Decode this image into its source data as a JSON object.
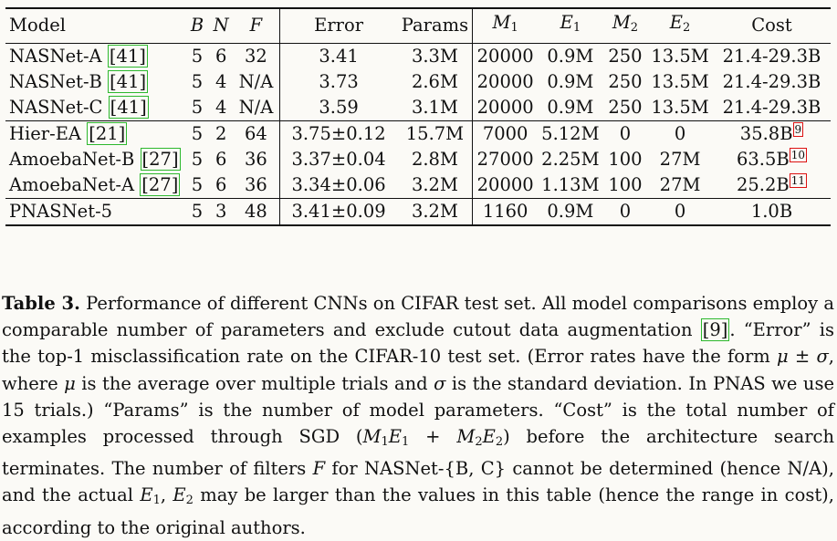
{
  "header": {
    "model": "Model",
    "b": "B",
    "n": "N",
    "f": "F",
    "error": "Error",
    "params": "Params",
    "m1": "M",
    "m1_sub": "1",
    "e1": "E",
    "e1_sub": "1",
    "m2": "M",
    "m2_sub": "2",
    "e2": "E",
    "e2_sub": "2",
    "cost": "Cost"
  },
  "rows": [
    {
      "model": "NASNet-A",
      "cite": "[41]",
      "b": "5",
      "n": "6",
      "f": "32",
      "error": "3.41",
      "params": "3.3M",
      "m1": "20000",
      "e1": "0.9M",
      "m2": "250",
      "e2": "13.5M",
      "cost": "21.4-29.3B",
      "fn": ""
    },
    {
      "model": "NASNet-B",
      "cite": "[41]",
      "b": "5",
      "n": "4",
      "f": "N/A",
      "error": "3.73",
      "params": "2.6M",
      "m1": "20000",
      "e1": "0.9M",
      "m2": "250",
      "e2": "13.5M",
      "cost": "21.4-29.3B",
      "fn": ""
    },
    {
      "model": "NASNet-C",
      "cite": "[41]",
      "b": "5",
      "n": "4",
      "f": "N/A",
      "error": "3.59",
      "params": "3.1M",
      "m1": "20000",
      "e1": "0.9M",
      "m2": "250",
      "e2": "13.5M",
      "cost": "21.4-29.3B",
      "fn": ""
    },
    {
      "model": "Hier-EA",
      "cite": "[21]",
      "b": "5",
      "n": "2",
      "f": "64",
      "error": "3.75±0.12",
      "params": "15.7M",
      "m1": "7000",
      "e1": "5.12M",
      "m2": "0",
      "e2": "0",
      "cost": "35.8B",
      "fn": "9"
    },
    {
      "model": "AmoebaNet-B",
      "cite": "[27]",
      "b": "5",
      "n": "6",
      "f": "36",
      "error": "3.37±0.04",
      "params": "2.8M",
      "m1": "27000",
      "e1": "2.25M",
      "m2": "100",
      "e2": "27M",
      "cost": "63.5B",
      "fn": "10"
    },
    {
      "model": "AmoebaNet-A",
      "cite": "[27]",
      "b": "5",
      "n": "6",
      "f": "36",
      "error": "3.34±0.06",
      "params": "3.2M",
      "m1": "20000",
      "e1": "1.13M",
      "m2": "100",
      "e2": "27M",
      "cost": "25.2B",
      "fn": "11"
    },
    {
      "model": "PNASNet-5",
      "cite": "",
      "b": "5",
      "n": "3",
      "f": "48",
      "error": "3.41±0.09",
      "params": "3.2M",
      "m1": "1160",
      "e1": "0.9M",
      "m2": "0",
      "e2": "0",
      "cost": "1.0B",
      "fn": ""
    }
  ],
  "caption": {
    "label": "Table 3.",
    "s1": " Performance of different CNNs on CIFAR test set. All model comparisons employ a comparable number of parameters and exclude cutout data augmentation ",
    "cite9": "[9]",
    "s2": ". “Error” is the top-1 misclassification rate on the CIFAR-10 test set. (Error rates have the form ",
    "mu": "μ",
    "pm": " ± ",
    "sigma": "σ",
    "s3": ", where ",
    "s4": " is the average over multiple trials and ",
    "s5": " is the standard deviation. In PNAS we use 15 trials.) “Params” is the number of model parameters. “Cost” is the total number of examples processed through SGD (",
    "formula_m1": "M",
    "formula_e1": "E",
    "formula_plus": "+",
    "formula_m2": "M",
    "formula_e2": "E",
    "sub1": "1",
    "sub2": "2",
    "s6": ") before the architecture search terminates. The number of filters ",
    "f": "F",
    "s7": " for NASNet-{B, C} cannot be determined (hence N/A), and the actual ",
    "e": "E",
    "s8": ", ",
    "s9": " may be larger than the values in this table (hence the range in cost), according to the original authors."
  }
}
